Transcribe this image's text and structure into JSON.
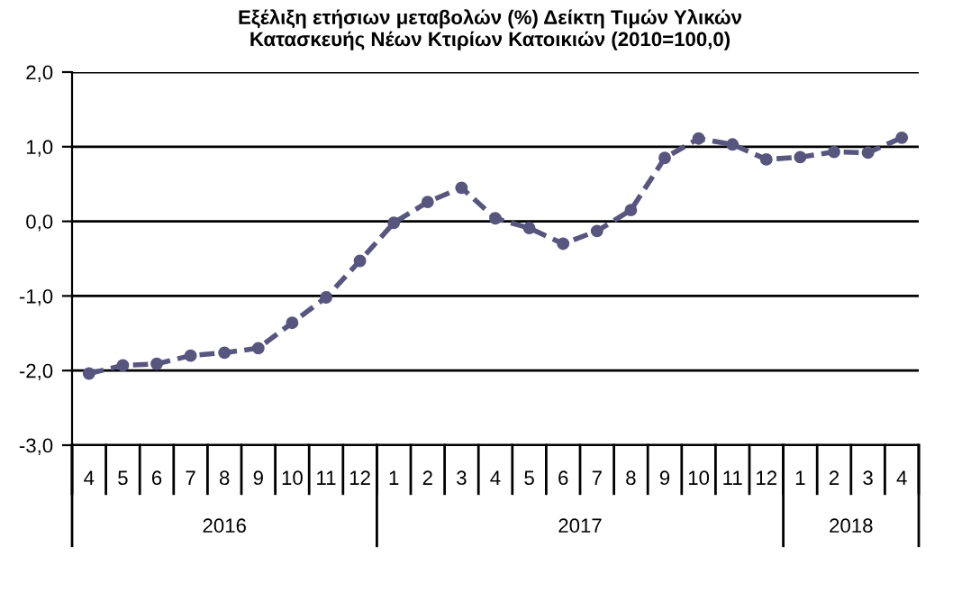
{
  "chart_data": {
    "type": "line",
    "title": "Εξέλιξη ετήσιων μεταβολών (%) Δείκτη Τιμών Υλικών\nΚατασκευής Νέων Κτιρίων Κατοικιών (2010=100,0)",
    "categories": [
      "4",
      "5",
      "6",
      "7",
      "8",
      "9",
      "10",
      "11",
      "12",
      "1",
      "2",
      "3",
      "4",
      "5",
      "6",
      "7",
      "8",
      "9",
      "10",
      "11",
      "12",
      "1",
      "2",
      "3",
      "4"
    ],
    "series": [
      {
        "color": "#58557f",
        "values": [
          -2.04,
          -1.93,
          -1.91,
          -1.8,
          -1.76,
          -1.7,
          -1.36,
          -1.02,
          -0.53,
          -0.02,
          0.26,
          0.45,
          0.04,
          -0.09,
          -0.3,
          -0.13,
          0.15,
          0.85,
          1.11,
          1.03,
          0.83,
          0.86,
          0.93,
          0.92,
          1.12
        ]
      }
    ],
    "ylim": [
      -3,
      2
    ],
    "yticks": [
      {
        "value": -3,
        "label": "-3,0"
      },
      {
        "value": -2,
        "label": "-2,0"
      },
      {
        "value": -1,
        "label": "-1,0"
      },
      {
        "value": 0,
        "label": "0,0"
      },
      {
        "value": 1,
        "label": "1,0"
      },
      {
        "value": 2,
        "label": "2,0"
      }
    ],
    "annotations": [
      "2016",
      "2017",
      "2018"
    ],
    "grid": "y",
    "marker": "circle",
    "line_style": "dashed",
    "legend": false
  }
}
